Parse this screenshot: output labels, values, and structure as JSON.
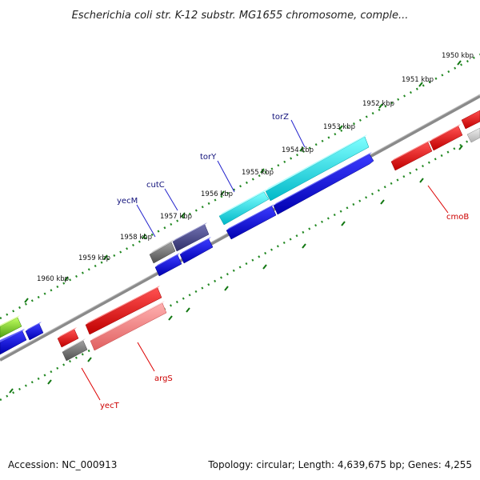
{
  "title": "Escherichia coli str. K-12 substr. MG1655 chromosome, comple...",
  "footer": {
    "accession": "Accession: NC_000913",
    "topology": "Topology: circular; Length: 4,639,675 bp; Genes: 4,255"
  },
  "ticks": [
    "1950 kbp",
    "1951 kbp",
    "1952 kbp",
    "1953 kbp",
    "1954 kbp",
    "1955 kbp",
    "1956 kbp",
    "1957 kbp",
    "1958 kbp",
    "1959 kbp",
    "1960 kbp"
  ],
  "gene_labels": {
    "torZ": "torZ",
    "torY": "torY",
    "cutC": "cutC",
    "yecM": "yecM",
    "cmoB": "cmoB",
    "argS": "argS",
    "yecT": "yecT"
  },
  "colors": {
    "forward_gene": "#00dddd",
    "reverse_gene": "#1010ee",
    "red_gene": "#ee1111",
    "pink_gene": "#f08080",
    "grey_gene": "#777777",
    "dark_gene": "#4a4a8a",
    "green_gene": "#77cc22",
    "backbone": "#808080",
    "tick_major": "#228822"
  }
}
